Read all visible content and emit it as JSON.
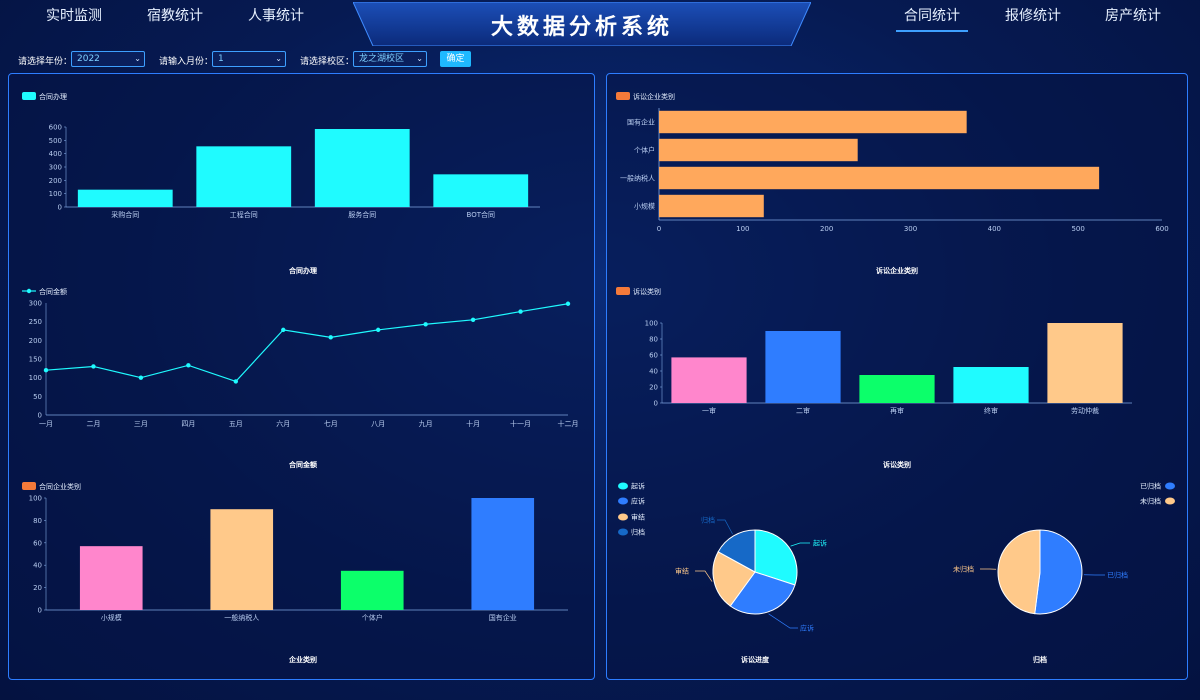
{
  "nav": {
    "left": [
      "实时监测",
      "宿教统计",
      "人事统计"
    ],
    "right": [
      "合同统计",
      "报修统计",
      "房产统计"
    ],
    "active": "合同统计"
  },
  "title": "大数据分析系统",
  "filters": {
    "year_label": "请选择年份：",
    "year_value": "2022",
    "month_label": "请输入月份：",
    "month_value": "1",
    "campus_label": "请选择校区：",
    "campus_value": "龙之湖校区",
    "confirm_label": "确定"
  },
  "colors": {
    "cyan": "#1ffbff",
    "orange": "#ffa85c",
    "pink": "#ff86cc",
    "blue": "#2f7dff",
    "green": "#0cff6a",
    "yellow": "#ffc98a",
    "darkblue": "#1669c7",
    "legend_orange": "#f47a3a"
  },
  "chart_data": [
    {
      "id": "contract-handling",
      "type": "bar",
      "legend": "合同办理",
      "title": "合同办理",
      "categories": [
        "采购合同",
        "工程合同",
        "服务合同",
        "BOT合同"
      ],
      "values": [
        130,
        455,
        585,
        245
      ],
      "ylim": [
        0,
        600
      ],
      "yticks": [
        0,
        100,
        200,
        300,
        400,
        500,
        600
      ]
    },
    {
      "id": "contract-amount",
      "type": "line",
      "legend": "合同金额",
      "title": "合同金额",
      "categories": [
        "一月",
        "二月",
        "三月",
        "四月",
        "五月",
        "六月",
        "七月",
        "八月",
        "九月",
        "十月",
        "十一月",
        "十二月"
      ],
      "values": [
        120,
        130,
        100,
        133,
        90,
        228,
        208,
        228,
        243,
        255,
        277,
        298
      ],
      "ylim": [
        0,
        300
      ],
      "yticks": [
        0,
        50,
        100,
        150,
        200,
        250,
        300
      ]
    },
    {
      "id": "contract-company-type",
      "type": "bar",
      "legend": "合同企业类别",
      "title": "企业类别",
      "categories": [
        "小规模",
        "一般纳税人",
        "个体户",
        "国有企业"
      ],
      "values": [
        57,
        90,
        35,
        100
      ],
      "ylim": [
        0,
        100
      ],
      "yticks": [
        0,
        20,
        40,
        60,
        80,
        100
      ]
    },
    {
      "id": "litigation-company-type",
      "type": "bar",
      "orientation": "horizontal",
      "legend": "诉讼企业类别",
      "title": "诉讼企业类别",
      "categories": [
        "国有企业",
        "个体户",
        "一般纳税人",
        "小规模"
      ],
      "values": [
        367,
        237,
        525,
        125
      ],
      "xlim": [
        0,
        600
      ],
      "xticks": [
        0,
        100,
        200,
        300,
        400,
        500,
        600
      ]
    },
    {
      "id": "litigation-category",
      "type": "bar",
      "legend": "诉讼类别",
      "title": "诉讼类别",
      "categories": [
        "一审",
        "二审",
        "再审",
        "终审",
        "劳动仲裁"
      ],
      "values": [
        57,
        90,
        35,
        45,
        100
      ],
      "ylim": [
        0,
        100
      ],
      "yticks": [
        0,
        20,
        40,
        60,
        80,
        100
      ]
    },
    {
      "id": "litigation-progress",
      "type": "pie",
      "title": "诉讼进度",
      "slices": [
        {
          "label": "起诉",
          "value": 30
        },
        {
          "label": "应诉",
          "value": 30
        },
        {
          "label": "审结",
          "value": 23
        },
        {
          "label": "归档",
          "value": 17
        }
      ]
    },
    {
      "id": "archive",
      "type": "pie",
      "title": "归档",
      "slices": [
        {
          "label": "已归档",
          "value": 52
        },
        {
          "label": "未归档",
          "value": 48
        }
      ]
    }
  ]
}
